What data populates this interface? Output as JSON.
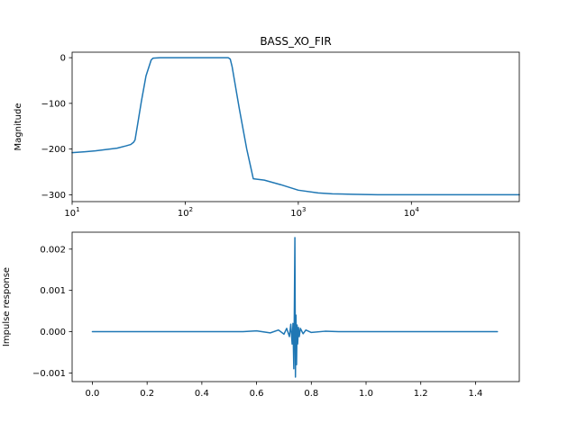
{
  "chart_data": [
    {
      "type": "line",
      "title": "BASS_XO_FIR",
      "xlabel": "",
      "ylabel": "Magnitude",
      "xscale": "log",
      "xlim": [
        10,
        90000
      ],
      "ylim": [
        -315,
        12
      ],
      "grid": false,
      "color": "#1f77b4",
      "x_ticks": [
        {
          "value": 10,
          "base": "10",
          "exp": "1"
        },
        {
          "value": 100,
          "base": "10",
          "exp": "2"
        },
        {
          "value": 1000,
          "base": "10",
          "exp": "3"
        },
        {
          "value": 10000,
          "base": "10",
          "exp": "4"
        }
      ],
      "y_ticks": [
        {
          "value": 0,
          "label": "0"
        },
        {
          "value": -100,
          "label": "−100"
        },
        {
          "value": -200,
          "label": "−200"
        },
        {
          "value": -300,
          "label": "−300"
        }
      ],
      "x": [
        10,
        13,
        16,
        20,
        25,
        30,
        33,
        35,
        36,
        38,
        41,
        45,
        50,
        52,
        60,
        100,
        200,
        240,
        250,
        260,
        300,
        350,
        380,
        400,
        500,
        700,
        1000,
        1500,
        2000,
        3000,
        5000,
        10000,
        30000,
        90000
      ],
      "y": [
        -208,
        -206,
        -204,
        -201,
        -198,
        -193,
        -190,
        -185,
        -180,
        -145,
        -95,
        -40,
        -5,
        -1,
        0,
        0,
        0,
        0,
        -3,
        -20,
        -110,
        -200,
        -240,
        -265,
        -268,
        -278,
        -290,
        -296,
        -298,
        -299,
        -300,
        -300,
        -300,
        -300
      ]
    },
    {
      "type": "line",
      "title": "",
      "xlabel": "",
      "ylabel": "Impulse response",
      "xlim": [
        -0.074,
        1.56
      ],
      "ylim": [
        -0.00121,
        0.00241
      ],
      "grid": false,
      "color": "#1f77b4",
      "x_ticks": [
        {
          "value": 0.0,
          "label": "0.0"
        },
        {
          "value": 0.2,
          "label": "0.2"
        },
        {
          "value": 0.4,
          "label": "0.4"
        },
        {
          "value": 0.6,
          "label": "0.6"
        },
        {
          "value": 0.8,
          "label": "0.8"
        },
        {
          "value": 1.0,
          "label": "1.0"
        },
        {
          "value": 1.2,
          "label": "1.2"
        },
        {
          "value": 1.4,
          "label": "1.4"
        }
      ],
      "y_ticks": [
        {
          "value": -0.001,
          "label": "−0.001"
        },
        {
          "value": 0.0,
          "label": "0.000"
        },
        {
          "value": 0.001,
          "label": "0.001"
        },
        {
          "value": 0.002,
          "label": "0.002"
        }
      ],
      "x": [
        0.0,
        0.55,
        0.6,
        0.65,
        0.68,
        0.7,
        0.71,
        0.72,
        0.725,
        0.73,
        0.733,
        0.736,
        0.738,
        0.74,
        0.742,
        0.744,
        0.746,
        0.748,
        0.75,
        0.753,
        0.756,
        0.76,
        0.77,
        0.78,
        0.8,
        0.85,
        0.9,
        0.95,
        1.48
      ],
      "y": [
        0.0,
        0.0,
        2e-05,
        -3e-05,
        4e-05,
        -6e-05,
        8e-05,
        -0.00012,
        0.00018,
        -0.0003,
        0.0002,
        -0.0009,
        0.0005,
        0.00228,
        -0.0011,
        0.0004,
        -0.0008,
        0.00016,
        -0.0003,
        0.0001,
        -0.00012,
        8e-05,
        -5e-05,
        4e-05,
        -2e-05,
        1e-05,
        0.0,
        0.0,
        0.0
      ]
    }
  ]
}
